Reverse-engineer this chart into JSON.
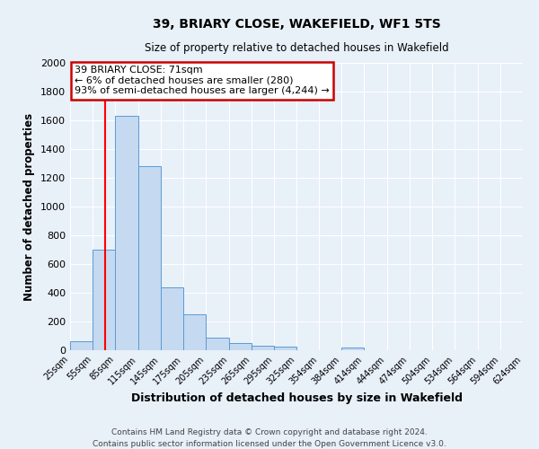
{
  "title": "39, BRIARY CLOSE, WAKEFIELD, WF1 5TS",
  "subtitle": "Size of property relative to detached houses in Wakefield",
  "xlabel": "Distribution of detached houses by size in Wakefield",
  "ylabel": "Number of detached properties",
  "bar_edges": [
    25,
    55,
    85,
    115,
    145,
    175,
    205,
    235,
    265,
    295,
    325,
    354,
    384,
    414,
    444,
    474,
    504,
    534,
    564,
    594,
    624
  ],
  "bar_heights": [
    65,
    700,
    1630,
    1280,
    435,
    250,
    90,
    50,
    30,
    25,
    0,
    0,
    20,
    0,
    0,
    0,
    0,
    0,
    0,
    0
  ],
  "bar_color": "#c5d9f0",
  "bar_edge_color": "#5b9bd5",
  "red_line_x": 71,
  "ylim": [
    0,
    2000
  ],
  "yticks": [
    0,
    200,
    400,
    600,
    800,
    1000,
    1200,
    1400,
    1600,
    1800,
    2000
  ],
  "xtick_labels": [
    "25sqm",
    "55sqm",
    "85sqm",
    "115sqm",
    "145sqm",
    "175sqm",
    "205sqm",
    "235sqm",
    "265sqm",
    "295sqm",
    "325sqm",
    "354sqm",
    "384sqm",
    "414sqm",
    "444sqm",
    "474sqm",
    "504sqm",
    "534sqm",
    "564sqm",
    "594sqm",
    "624sqm"
  ],
  "annotation_title": "39 BRIARY CLOSE: 71sqm",
  "annotation_line1": "← 6% of detached houses are smaller (280)",
  "annotation_line2": "93% of semi-detached houses are larger (4,244) →",
  "annotation_box_color": "#ffffff",
  "annotation_box_edge": "#cc0000",
  "footer_line1": "Contains HM Land Registry data © Crown copyright and database right 2024.",
  "footer_line2": "Contains public sector information licensed under the Open Government Licence v3.0.",
  "bg_color": "#e8f0f8",
  "grid_color": "#ffffff",
  "figwidth": 6.0,
  "figheight": 5.0,
  "dpi": 100
}
